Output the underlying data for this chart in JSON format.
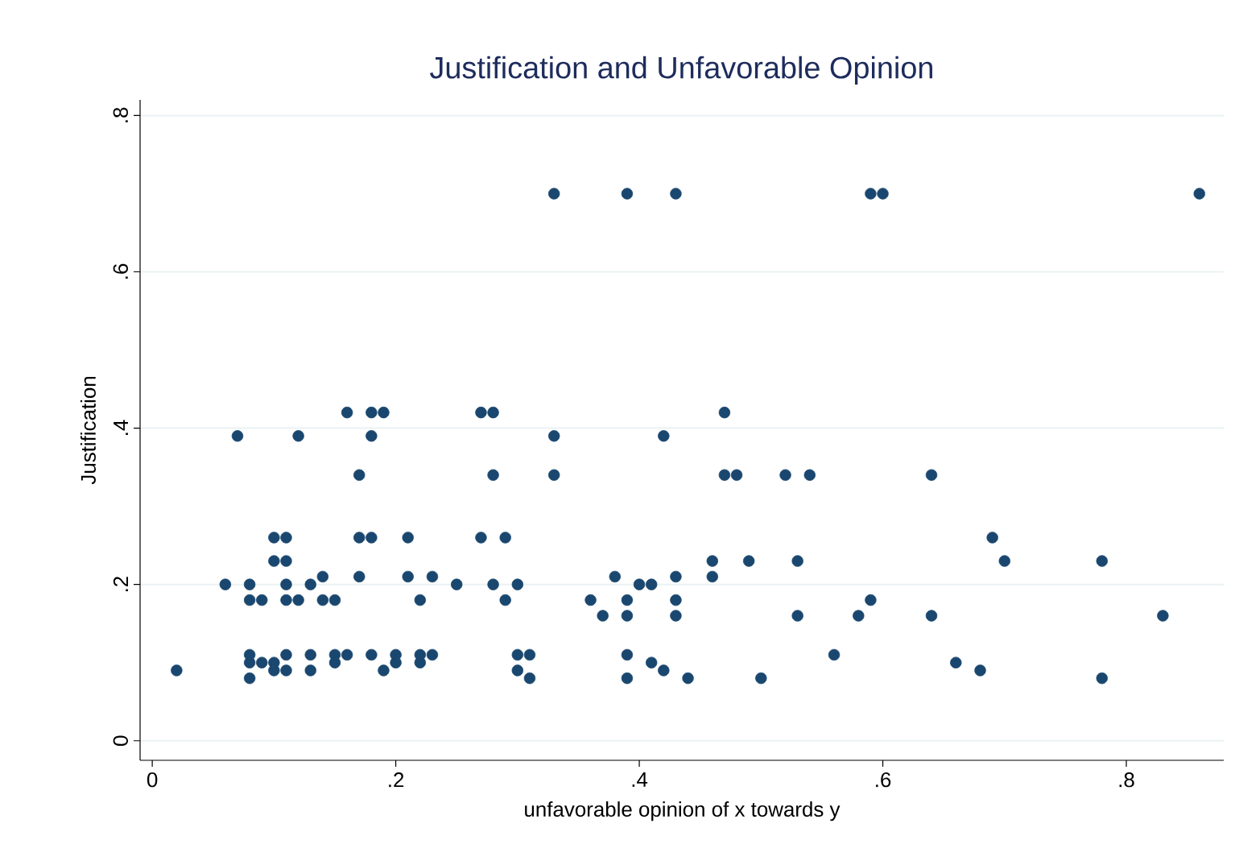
{
  "chart_data": {
    "type": "scatter",
    "title": "Justification and Unfavorable Opinion",
    "xlabel": "unfavorable opinion of x towards y",
    "ylabel": "Justification",
    "x": [
      0.33,
      0.39,
      0.43,
      0.59,
      0.6,
      0.86,
      0.16,
      0.18,
      0.19,
      0.27,
      0.28,
      0.47,
      0.07,
      0.12,
      0.18,
      0.33,
      0.42,
      0.17,
      0.28,
      0.33,
      0.47,
      0.48,
      0.52,
      0.54,
      0.64,
      0.1,
      0.11,
      0.17,
      0.18,
      0.21,
      0.27,
      0.29,
      0.69,
      0.1,
      0.11,
      0.46,
      0.49,
      0.53,
      0.7,
      0.78,
      0.14,
      0.17,
      0.21,
      0.23,
      0.38,
      0.43,
      0.46,
      0.06,
      0.08,
      0.11,
      0.13,
      0.25,
      0.28,
      0.3,
      0.4,
      0.41,
      0.08,
      0.09,
      0.11,
      0.12,
      0.14,
      0.15,
      0.22,
      0.29,
      0.36,
      0.39,
      0.43,
      0.59,
      0.37,
      0.39,
      0.43,
      0.53,
      0.58,
      0.64,
      0.83,
      0.08,
      0.11,
      0.13,
      0.15,
      0.16,
      0.18,
      0.2,
      0.22,
      0.23,
      0.3,
      0.31,
      0.39,
      0.56,
      0.08,
      0.09,
      0.1,
      0.15,
      0.2,
      0.22,
      0.41,
      0.66,
      0.02,
      0.1,
      0.11,
      0.13,
      0.19,
      0.3,
      0.42,
      0.68,
      0.08,
      0.31,
      0.39,
      0.44,
      0.5,
      0.78
    ],
    "values": [
      0.7,
      0.7,
      0.7,
      0.7,
      0.7,
      0.7,
      0.42,
      0.42,
      0.42,
      0.42,
      0.42,
      0.42,
      0.39,
      0.39,
      0.39,
      0.39,
      0.39,
      0.34,
      0.34,
      0.34,
      0.34,
      0.34,
      0.34,
      0.34,
      0.34,
      0.26,
      0.26,
      0.26,
      0.26,
      0.26,
      0.26,
      0.26,
      0.26,
      0.23,
      0.23,
      0.23,
      0.23,
      0.23,
      0.23,
      0.23,
      0.21,
      0.21,
      0.21,
      0.21,
      0.21,
      0.21,
      0.21,
      0.2,
      0.2,
      0.2,
      0.2,
      0.2,
      0.2,
      0.2,
      0.2,
      0.2,
      0.18,
      0.18,
      0.18,
      0.18,
      0.18,
      0.18,
      0.18,
      0.18,
      0.18,
      0.18,
      0.18,
      0.18,
      0.16,
      0.16,
      0.16,
      0.16,
      0.16,
      0.16,
      0.16,
      0.11,
      0.11,
      0.11,
      0.11,
      0.11,
      0.11,
      0.11,
      0.11,
      0.11,
      0.11,
      0.11,
      0.11,
      0.11,
      0.1,
      0.1,
      0.1,
      0.1,
      0.1,
      0.1,
      0.1,
      0.1,
      0.09,
      0.09,
      0.09,
      0.09,
      0.09,
      0.09,
      0.09,
      0.09,
      0.08,
      0.08,
      0.08,
      0.08,
      0.08,
      0.08
    ],
    "color": "#1a476f",
    "marker": "circle",
    "xlim": [
      -0.01,
      0.88
    ],
    "ylim": [
      -0.025,
      0.82
    ],
    "xticks": [
      0,
      {
        "value": 0.2,
        "label": ".2"
      },
      {
        "value": 0.4,
        "label": ".4"
      },
      {
        "value": 0.6,
        "label": ".6"
      },
      {
        "value": 0.8,
        "label": ".8"
      }
    ],
    "yticks": [
      0,
      {
        "value": 0.2,
        "label": ".2"
      },
      {
        "value": 0.4,
        "label": ".4"
      },
      {
        "value": 0.6,
        "label": ".6"
      },
      {
        "value": 0.8,
        "label": ".8"
      }
    ],
    "grid": "y"
  }
}
